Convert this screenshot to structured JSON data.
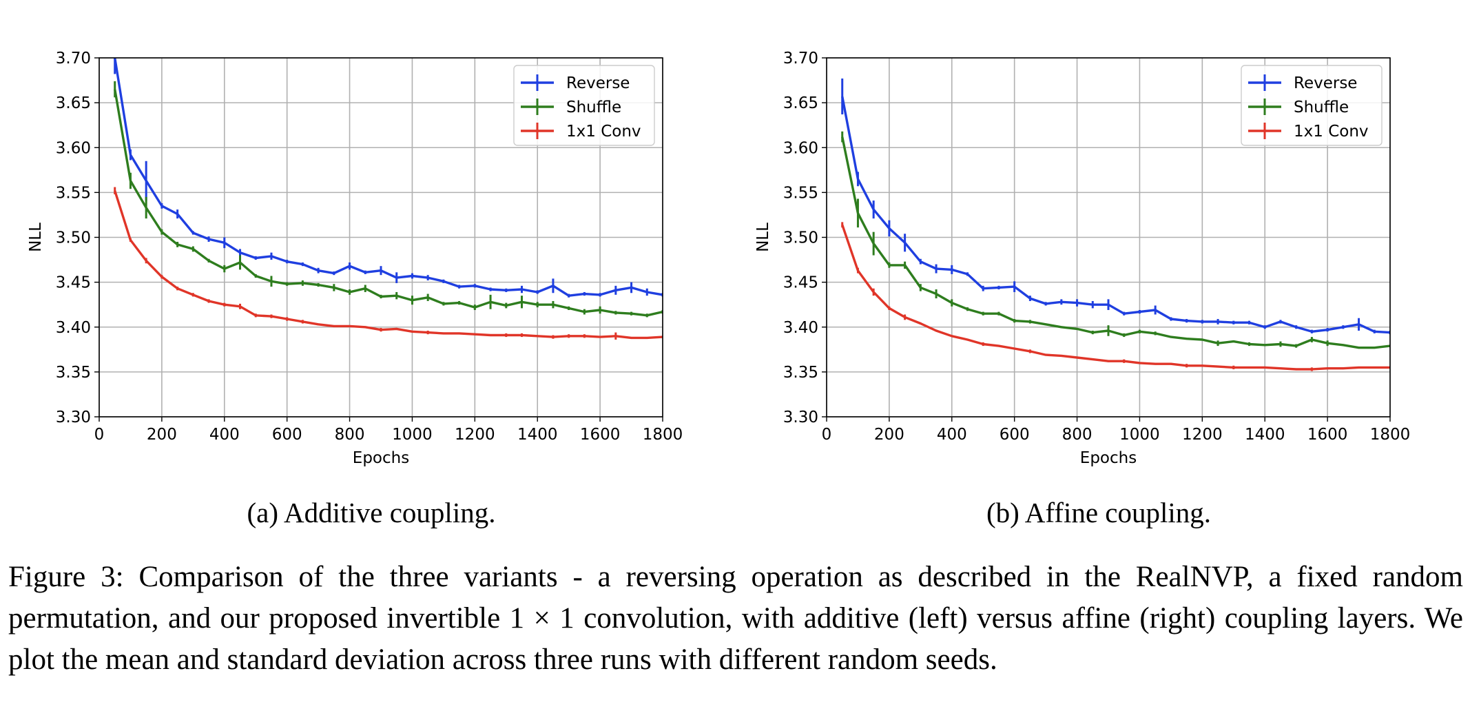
{
  "caption": {
    "text": "Figure 3: Comparison of the three variants - a reversing operation as described in the RealNVP, a fixed random permutation, and our proposed invertible 1 × 1 convolution, with additive (left) versus affine (right) coupling layers. We plot the mean and standard deviation across three runs with different random seeds."
  },
  "colors": {
    "reverse": "#1f3fe0",
    "shuffle": "#2e7d1e",
    "conv": "#e03528",
    "grid": "#b0b0b0"
  },
  "chart_data": [
    {
      "type": "line",
      "subcaption": "(a) Additive coupling.",
      "xlabel": "Epochs",
      "ylabel": "NLL",
      "xlim": [
        0,
        1800
      ],
      "ylim": [
        3.3,
        3.7
      ],
      "xticks": [
        "0",
        "200",
        "400",
        "600",
        "800",
        "1000",
        "1200",
        "1400",
        "1600",
        "1800"
      ],
      "yticks": [
        "3.30",
        "3.35",
        "3.40",
        "3.45",
        "3.50",
        "3.55",
        "3.60",
        "3.65",
        "3.70"
      ],
      "grid": true,
      "legend_position": "top-right",
      "series": [
        {
          "name": "Reverse",
          "color_key": "reverse",
          "x": [
            50,
            100,
            150,
            200,
            250,
            300,
            350,
            400,
            450,
            500,
            550,
            600,
            650,
            700,
            750,
            800,
            850,
            900,
            950,
            1000,
            1050,
            1100,
            1150,
            1200,
            1250,
            1300,
            1350,
            1400,
            1450,
            1500,
            1550,
            1600,
            1650,
            1700,
            1750,
            1800
          ],
          "y": [
            3.7,
            3.592,
            3.563,
            3.535,
            3.526,
            3.505,
            3.498,
            3.494,
            3.483,
            3.477,
            3.479,
            3.473,
            3.47,
            3.463,
            3.46,
            3.468,
            3.461,
            3.463,
            3.455,
            3.457,
            3.455,
            3.451,
            3.445,
            3.446,
            3.442,
            3.441,
            3.442,
            3.439,
            3.446,
            3.435,
            3.437,
            3.436,
            3.441,
            3.444,
            3.439,
            3.436
          ],
          "err": [
            0.018,
            0.006,
            0.022,
            0.003,
            0.005,
            0.002,
            0.003,
            0.006,
            0.004,
            0.002,
            0.004,
            0.002,
            0.002,
            0.003,
            0.002,
            0.004,
            0.002,
            0.005,
            0.006,
            0.003,
            0.003,
            0.002,
            0.002,
            0.002,
            0.002,
            0.002,
            0.004,
            0.002,
            0.008,
            0.002,
            0.002,
            0.002,
            0.005,
            0.006,
            0.004,
            0.002
          ]
        },
        {
          "name": "Shuffle",
          "color_key": "shuffle",
          "x": [
            50,
            100,
            150,
            200,
            250,
            300,
            350,
            400,
            450,
            500,
            550,
            600,
            650,
            700,
            750,
            800,
            850,
            900,
            950,
            1000,
            1050,
            1100,
            1150,
            1200,
            1250,
            1300,
            1350,
            1400,
            1450,
            1500,
            1550,
            1600,
            1650,
            1700,
            1750,
            1800
          ],
          "y": [
            3.665,
            3.563,
            3.533,
            3.506,
            3.492,
            3.487,
            3.474,
            3.465,
            3.472,
            3.457,
            3.451,
            3.448,
            3.449,
            3.447,
            3.444,
            3.439,
            3.443,
            3.434,
            3.435,
            3.43,
            3.433,
            3.426,
            3.427,
            3.422,
            3.428,
            3.424,
            3.428,
            3.425,
            3.425,
            3.421,
            3.417,
            3.419,
            3.416,
            3.415,
            3.413,
            3.417
          ],
          "err": [
            0.009,
            0.009,
            0.012,
            0.003,
            0.003,
            0.003,
            0.002,
            0.004,
            0.008,
            0.002,
            0.006,
            0.002,
            0.003,
            0.002,
            0.004,
            0.003,
            0.004,
            0.002,
            0.004,
            0.005,
            0.004,
            0.002,
            0.002,
            0.003,
            0.008,
            0.003,
            0.007,
            0.003,
            0.004,
            0.002,
            0.003,
            0.004,
            0.002,
            0.002,
            0.002,
            0.002
          ]
        },
        {
          "name": "1x1 Conv",
          "color_key": "conv",
          "x": [
            50,
            100,
            150,
            200,
            250,
            300,
            350,
            400,
            450,
            500,
            550,
            600,
            650,
            700,
            750,
            800,
            850,
            900,
            950,
            1000,
            1050,
            1100,
            1150,
            1200,
            1250,
            1300,
            1350,
            1400,
            1450,
            1500,
            1550,
            1600,
            1650,
            1700,
            1750,
            1800
          ],
          "y": [
            3.552,
            3.497,
            3.474,
            3.456,
            3.443,
            3.436,
            3.429,
            3.425,
            3.423,
            3.413,
            3.412,
            3.409,
            3.406,
            3.403,
            3.401,
            3.401,
            3.4,
            3.397,
            3.398,
            3.395,
            3.394,
            3.393,
            3.393,
            3.392,
            3.391,
            3.391,
            3.391,
            3.39,
            3.389,
            3.39,
            3.39,
            3.389,
            3.39,
            3.388,
            3.388,
            3.389
          ],
          "err": [
            0.004,
            0.002,
            0.003,
            0.002,
            0.002,
            0.002,
            0.002,
            0.002,
            0.003,
            0.002,
            0.002,
            0.002,
            0.002,
            0.001,
            0.001,
            0.001,
            0.001,
            0.002,
            0.001,
            0.001,
            0.002,
            0.001,
            0.001,
            0.001,
            0.001,
            0.002,
            0.002,
            0.001,
            0.002,
            0.002,
            0.002,
            0.001,
            0.004,
            0.001,
            0.001,
            0.001
          ]
        }
      ]
    },
    {
      "type": "line",
      "subcaption": "(b) Affine coupling.",
      "xlabel": "Epochs",
      "ylabel": "NLL",
      "xlim": [
        0,
        1800
      ],
      "ylim": [
        3.3,
        3.7
      ],
      "xticks": [
        "0",
        "200",
        "400",
        "600",
        "800",
        "1000",
        "1200",
        "1400",
        "1600",
        "1800"
      ],
      "yticks": [
        "3.30",
        "3.35",
        "3.40",
        "3.45",
        "3.50",
        "3.55",
        "3.60",
        "3.65",
        "3.70"
      ],
      "grid": true,
      "legend_position": "top-right",
      "series": [
        {
          "name": "Reverse",
          "color_key": "reverse",
          "x": [
            50,
            100,
            150,
            200,
            250,
            300,
            350,
            400,
            450,
            500,
            550,
            600,
            650,
            700,
            750,
            800,
            850,
            900,
            950,
            1000,
            1050,
            1100,
            1150,
            1200,
            1250,
            1300,
            1350,
            1400,
            1450,
            1500,
            1550,
            1600,
            1650,
            1700,
            1750,
            1800
          ],
          "y": [
            3.657,
            3.565,
            3.531,
            3.51,
            3.494,
            3.473,
            3.465,
            3.464,
            3.459,
            3.443,
            3.444,
            3.445,
            3.432,
            3.426,
            3.428,
            3.427,
            3.425,
            3.425,
            3.415,
            3.417,
            3.419,
            3.409,
            3.407,
            3.406,
            3.406,
            3.405,
            3.405,
            3.4,
            3.406,
            3.4,
            3.395,
            3.397,
            3.4,
            3.403,
            3.395,
            3.394
          ],
          "err": [
            0.02,
            0.008,
            0.01,
            0.009,
            0.01,
            0.003,
            0.005,
            0.005,
            0.002,
            0.003,
            0.002,
            0.006,
            0.003,
            0.002,
            0.003,
            0.004,
            0.004,
            0.006,
            0.002,
            0.002,
            0.005,
            0.002,
            0.002,
            0.002,
            0.003,
            0.002,
            0.002,
            0.002,
            0.002,
            0.002,
            0.002,
            0.002,
            0.002,
            0.007,
            0.002,
            0.002
          ]
        },
        {
          "name": "Shuffle",
          "color_key": "shuffle",
          "x": [
            50,
            100,
            150,
            200,
            250,
            300,
            350,
            400,
            450,
            500,
            550,
            600,
            650,
            700,
            750,
            800,
            850,
            900,
            950,
            1000,
            1050,
            1100,
            1150,
            1200,
            1250,
            1300,
            1350,
            1400,
            1450,
            1500,
            1550,
            1600,
            1650,
            1700,
            1750,
            1800
          ],
          "y": [
            3.612,
            3.527,
            3.493,
            3.469,
            3.469,
            3.444,
            3.437,
            3.427,
            3.42,
            3.415,
            3.415,
            3.407,
            3.406,
            3.403,
            3.4,
            3.398,
            3.394,
            3.396,
            3.391,
            3.395,
            3.393,
            3.389,
            3.387,
            3.386,
            3.382,
            3.384,
            3.381,
            3.38,
            3.381,
            3.379,
            3.386,
            3.382,
            3.38,
            3.377,
            3.377,
            3.379
          ],
          "err": [
            0.006,
            0.016,
            0.013,
            0.003,
            0.004,
            0.004,
            0.005,
            0.004,
            0.002,
            0.002,
            0.002,
            0.002,
            0.002,
            0.001,
            0.001,
            0.001,
            0.002,
            0.006,
            0.002,
            0.002,
            0.002,
            0.001,
            0.001,
            0.001,
            0.003,
            0.001,
            0.002,
            0.001,
            0.003,
            0.002,
            0.003,
            0.003,
            0.001,
            0.001,
            0.001,
            0.001
          ]
        },
        {
          "name": "1x1 Conv",
          "color_key": "conv",
          "x": [
            50,
            100,
            150,
            200,
            250,
            300,
            350,
            400,
            450,
            500,
            550,
            600,
            650,
            700,
            750,
            800,
            850,
            900,
            950,
            1000,
            1050,
            1100,
            1150,
            1200,
            1250,
            1300,
            1350,
            1400,
            1450,
            1500,
            1550,
            1600,
            1650,
            1700,
            1750,
            1800
          ],
          "y": [
            3.514,
            3.463,
            3.439,
            3.421,
            3.411,
            3.404,
            3.396,
            3.39,
            3.386,
            3.381,
            3.379,
            3.376,
            3.373,
            3.369,
            3.368,
            3.366,
            3.364,
            3.362,
            3.362,
            3.36,
            3.359,
            3.359,
            3.357,
            3.357,
            3.356,
            3.355,
            3.355,
            3.355,
            3.354,
            3.353,
            3.353,
            3.354,
            3.354,
            3.355,
            3.355,
            3.355
          ],
          "err": [
            0.003,
            0.003,
            0.004,
            0.002,
            0.003,
            0.001,
            0.001,
            0.001,
            0.001,
            0.002,
            0.001,
            0.001,
            0.002,
            0.001,
            0.001,
            0.001,
            0.001,
            0.001,
            0.002,
            0.001,
            0.001,
            0.001,
            0.002,
            0.001,
            0.001,
            0.002,
            0.001,
            0.001,
            0.001,
            0.001,
            0.002,
            0.001,
            0.001,
            0.001,
            0.001,
            0.001
          ]
        }
      ]
    }
  ]
}
